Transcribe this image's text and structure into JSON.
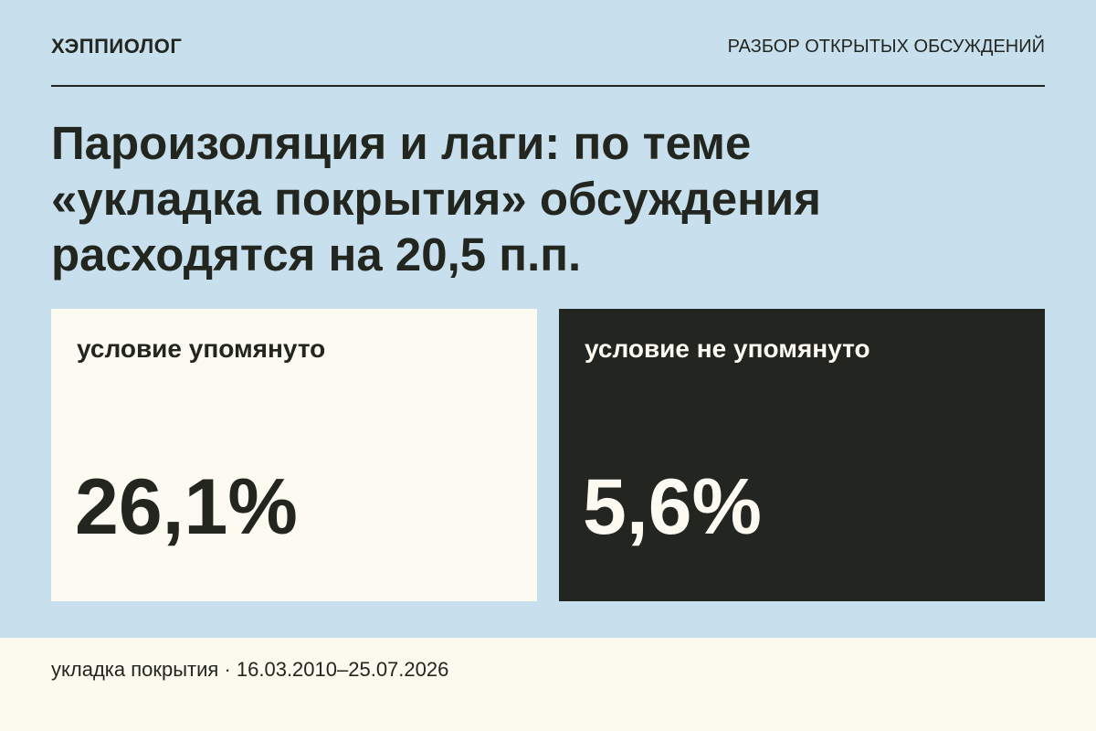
{
  "header": {
    "brand": "ХЭППИОЛОГ",
    "section": "РАЗБОР ОТКРЫТЫХ ОБСУЖДЕНИЙ"
  },
  "title": [
    "Пароизоляция и лаги: по теме",
    "«укладка покрытия» обсуждения",
    "расходятся на 20,5 п.п."
  ],
  "cards": [
    {
      "label": "условие упомянуто",
      "value": "26,1%"
    },
    {
      "label": "условие не упомянуто",
      "value": "5,6%"
    }
  ],
  "footer": "укладка покрытия · 16.03.2010–25.07.2026"
}
